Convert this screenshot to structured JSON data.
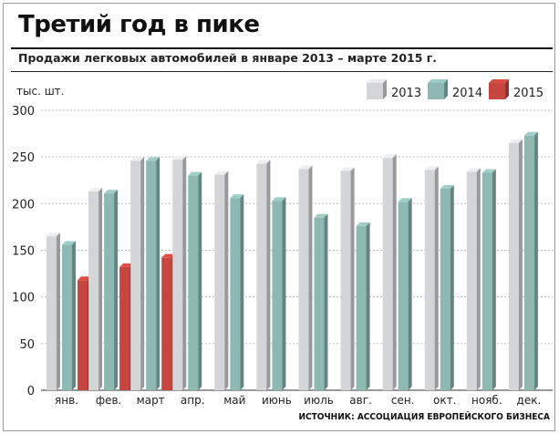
{
  "chart_data": {
    "type": "bar",
    "title": "Третий год в пике",
    "subtitle": "Продажи легковых автомобилей в январе 2013 – марте 2015 г.",
    "ylabel": "тыс. шт.",
    "source": "ИСТОЧНИК: АССОЦИАЦИЯ ЕВРОПЕЙСКОГО БИЗНЕСА",
    "ylim": [
      0,
      300
    ],
    "yticks": [
      "0",
      "50",
      "100",
      "150",
      "200",
      "250",
      "300"
    ],
    "grid": true,
    "legend_position": "top-right",
    "categories": [
      "янв.",
      "фев.",
      "март",
      "апр.",
      "май",
      "июнь",
      "июль",
      "авг.",
      "сен.",
      "окт.",
      "нояб.",
      "дек."
    ],
    "series": [
      {
        "name": "2013",
        "color": "#d4d5d7",
        "values": [
          165,
          213,
          246,
          247,
          231,
          243,
          237,
          235,
          249,
          236,
          234,
          265
        ]
      },
      {
        "name": "2014",
        "color": "#8eb8b2",
        "values": [
          156,
          211,
          246,
          230,
          206,
          203,
          185,
          176,
          202,
          216,
          233,
          273
        ]
      },
      {
        "name": "2015",
        "color": "#c84640",
        "values": [
          118,
          132,
          142,
          null,
          null,
          null,
          null,
          null,
          null,
          null,
          null,
          null
        ]
      }
    ]
  }
}
